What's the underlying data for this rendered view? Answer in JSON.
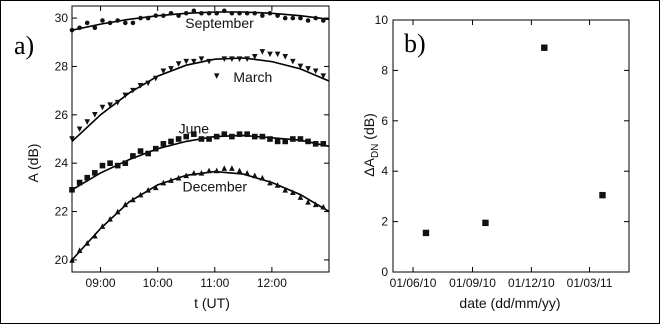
{
  "chart_data": [
    {
      "type": "scatter",
      "panel_label": "a)",
      "xlabel": "t (UT)",
      "ylabel": "A (dB)",
      "xlim": [
        "08:30",
        "13:00"
      ],
      "ylim": [
        19.5,
        30.5
      ],
      "x_ticks": [
        "09:00",
        "10:00",
        "11:00",
        "12:00"
      ],
      "y_ticks": [
        20,
        22,
        24,
        26,
        28,
        30
      ],
      "grid": false,
      "fit_lines": true,
      "series": [
        {
          "name": "September",
          "marker": "circle",
          "x": [
            "08:30",
            "08:38",
            "08:46",
            "08:54",
            "09:02",
            "09:10",
            "09:18",
            "09:26",
            "09:34",
            "09:42",
            "09:50",
            "09:58",
            "10:06",
            "10:14",
            "10:22",
            "10:30",
            "10:38",
            "10:46",
            "10:54",
            "11:02",
            "11:10",
            "11:18",
            "11:26",
            "11:34",
            "11:42",
            "11:50",
            "11:58",
            "12:06",
            "12:14",
            "12:22",
            "12:30",
            "12:38",
            "12:46",
            "12:54"
          ],
          "y": [
            29.5,
            29.6,
            29.8,
            29.6,
            29.9,
            29.8,
            29.9,
            29.8,
            29.8,
            30.0,
            30.0,
            30.1,
            30.1,
            30.2,
            30.1,
            30.2,
            30.3,
            30.2,
            30.2,
            30.2,
            30.3,
            30.2,
            30.2,
            30.2,
            30.2,
            30.1,
            30.2,
            30.1,
            30.0,
            30.0,
            30.0,
            29.9,
            30.0,
            29.9
          ],
          "fit": {
            "x": [
              "08:30",
              "09:00",
              "09:30",
              "10:00",
              "10:30",
              "11:00",
              "11:30",
              "12:00",
              "12:30",
              "13:00"
            ],
            "y": [
              29.5,
              29.75,
              29.95,
              30.1,
              30.2,
              30.25,
              30.25,
              30.2,
              30.1,
              29.95
            ]
          }
        },
        {
          "name": "March",
          "marker": "triangle-down",
          "x": [
            "08:30",
            "08:38",
            "08:46",
            "08:54",
            "09:02",
            "09:10",
            "09:18",
            "09:26",
            "09:34",
            "09:42",
            "09:50",
            "09:58",
            "10:06",
            "10:14",
            "10:22",
            "10:30",
            "10:38",
            "10:46",
            "10:54",
            "11:02",
            "11:10",
            "11:18",
            "11:26",
            "11:34",
            "11:42",
            "11:50",
            "11:58",
            "12:06",
            "12:14",
            "12:22",
            "12:30",
            "12:38",
            "12:46",
            "12:54"
          ],
          "y": [
            25.0,
            25.4,
            25.7,
            26.0,
            26.3,
            26.4,
            26.5,
            26.8,
            27.0,
            27.2,
            27.3,
            27.5,
            27.8,
            27.9,
            28.1,
            28.2,
            28.2,
            28.3,
            28.2,
            27.6,
            28.3,
            28.3,
            28.3,
            28.3,
            28.4,
            28.6,
            28.5,
            28.5,
            28.4,
            28.2,
            28.0,
            27.9,
            27.8,
            27.6
          ],
          "fit": {
            "x": [
              "08:30",
              "09:00",
              "09:30",
              "10:00",
              "10:30",
              "11:00",
              "11:30",
              "12:00",
              "12:30",
              "13:00"
            ],
            "y": [
              24.9,
              26.0,
              26.9,
              27.6,
              28.05,
              28.3,
              28.35,
              28.2,
              27.9,
              27.4
            ]
          }
        },
        {
          "name": "June",
          "marker": "square",
          "x": [
            "08:30",
            "08:38",
            "08:46",
            "08:54",
            "09:02",
            "09:10",
            "09:18",
            "09:26",
            "09:34",
            "09:42",
            "09:50",
            "09:58",
            "10:06",
            "10:14",
            "10:22",
            "10:30",
            "10:38",
            "10:46",
            "10:54",
            "11:02",
            "11:10",
            "11:18",
            "11:26",
            "11:34",
            "11:42",
            "11:50",
            "11:58",
            "12:06",
            "12:14",
            "12:22",
            "12:30",
            "12:38",
            "12:46",
            "12:54"
          ],
          "y": [
            22.9,
            23.2,
            23.4,
            23.6,
            23.9,
            24.0,
            23.9,
            24.0,
            24.3,
            24.5,
            24.4,
            24.6,
            24.8,
            24.9,
            25.0,
            25.1,
            25.2,
            25.0,
            25.0,
            25.1,
            25.2,
            25.1,
            25.2,
            25.2,
            25.1,
            25.1,
            25.0,
            24.9,
            24.9,
            25.0,
            25.0,
            24.9,
            24.8,
            24.8
          ],
          "fit": {
            "x": [
              "08:30",
              "09:00",
              "09:30",
              "10:00",
              "10:30",
              "11:00",
              "11:30",
              "12:00",
              "12:30",
              "13:00"
            ],
            "y": [
              22.9,
              23.6,
              24.15,
              24.6,
              24.9,
              25.1,
              25.15,
              25.05,
              24.95,
              24.7
            ]
          }
        },
        {
          "name": "December",
          "marker": "triangle-up",
          "x": [
            "08:30",
            "08:38",
            "08:46",
            "08:54",
            "09:02",
            "09:10",
            "09:18",
            "09:26",
            "09:34",
            "09:42",
            "09:50",
            "09:58",
            "10:06",
            "10:14",
            "10:22",
            "10:30",
            "10:38",
            "10:46",
            "10:54",
            "11:02",
            "11:10",
            "11:18",
            "11:26",
            "11:34",
            "11:42",
            "11:50",
            "11:58",
            "12:06",
            "12:14",
            "12:22",
            "12:30",
            "12:38",
            "12:46",
            "12:54"
          ],
          "y": [
            20.0,
            20.4,
            20.7,
            21.0,
            21.4,
            21.7,
            22.0,
            22.3,
            22.5,
            22.7,
            22.9,
            23.0,
            23.2,
            23.3,
            23.4,
            23.5,
            23.6,
            23.6,
            23.7,
            23.7,
            23.8,
            23.8,
            23.7,
            23.6,
            23.5,
            23.4,
            23.2,
            23.1,
            22.9,
            22.8,
            22.6,
            22.4,
            22.3,
            22.2
          ],
          "fit": {
            "x": [
              "08:30",
              "09:00",
              "09:30",
              "10:00",
              "10:30",
              "11:00",
              "11:30",
              "12:00",
              "12:30",
              "13:00"
            ],
            "y": [
              20.0,
              21.3,
              22.4,
              23.1,
              23.5,
              23.65,
              23.55,
              23.2,
              22.7,
              22.0
            ]
          }
        }
      ]
    },
    {
      "type": "scatter",
      "panel_label": "b)",
      "xlabel": "date (dd/mm/yy)",
      "ylabel_main": "ΔA",
      "ylabel_sub": "DN",
      "ylabel_unit": " (dB)",
      "xlim": [
        "2010-05-01",
        "2011-05-01"
      ],
      "ylim": [
        0,
        10
      ],
      "x_ticks": [
        {
          "date": "2010-06-01",
          "label": "01/06/10"
        },
        {
          "date": "2010-09-01",
          "label": "01/09/10"
        },
        {
          "date": "2010-12-01",
          "label": "01/12/10"
        },
        {
          "date": "2011-03-01",
          "label": "01/03/11"
        }
      ],
      "y_ticks": [
        0,
        2,
        4,
        6,
        8,
        10
      ],
      "grid": false,
      "points": [
        {
          "date": "2010-06-21",
          "value": 1.55
        },
        {
          "date": "2010-09-21",
          "value": 1.95
        },
        {
          "date": "2010-12-21",
          "value": 8.9
        },
        {
          "date": "2011-03-21",
          "value": 3.05
        }
      ]
    }
  ]
}
